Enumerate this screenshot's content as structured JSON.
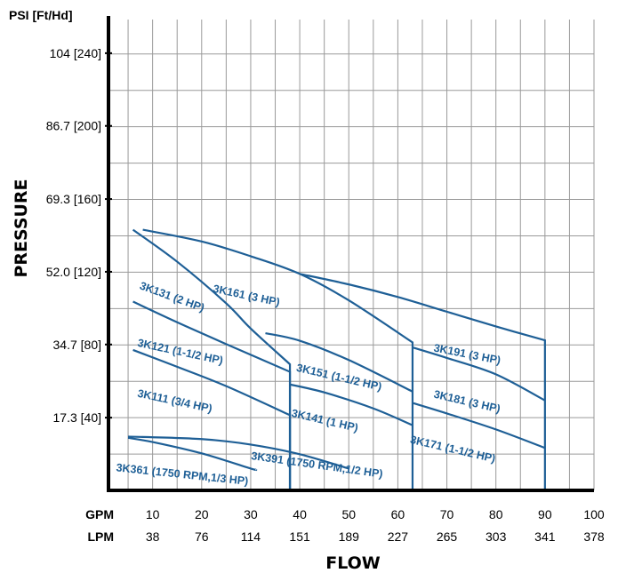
{
  "chart_data": {
    "type": "line",
    "xlabel": "FLOW",
    "ylabel": "PRESSURE",
    "y_unit_label": "PSI [Ft/Hd]",
    "x_unit_labels": [
      "GPM",
      "LPM"
    ],
    "x_ticks": [
      {
        "gpm": "10",
        "lpm": "38"
      },
      {
        "gpm": "20",
        "lpm": "76"
      },
      {
        "gpm": "30",
        "lpm": "114"
      },
      {
        "gpm": "40",
        "lpm": "151"
      },
      {
        "gpm": "50",
        "lpm": "189"
      },
      {
        "gpm": "60",
        "lpm": "227"
      },
      {
        "gpm": "70",
        "lpm": "265"
      },
      {
        "gpm": "80",
        "lpm": "303"
      },
      {
        "gpm": "90",
        "lpm": "341"
      },
      {
        "gpm": "100",
        "lpm": "378"
      }
    ],
    "y_ticks": [
      {
        "value": 17.3,
        "label": "17.3 [40]"
      },
      {
        "value": 34.7,
        "label": "34.7 [80]"
      },
      {
        "value": 52.0,
        "label": "52.0 [120]"
      },
      {
        "value": 69.3,
        "label": "69.3 [160]"
      },
      {
        "value": 86.7,
        "label": "86.7 [200]"
      },
      {
        "value": 104,
        "label": "104 [240]"
      }
    ],
    "xlim": [
      1,
      100
    ],
    "ylim": [
      0,
      112
    ],
    "grid": true,
    "series": [
      {
        "name": "3K361 (1750 RPM,1/3 HP)",
        "x": [
          5,
          10,
          20,
          30,
          31
        ],
        "y": [
          12.5,
          11.5,
          8.8,
          5.2,
          5.0
        ],
        "drop": false
      },
      {
        "name": "3K391 (1750 RPM,1/2 HP)",
        "x": [
          5,
          20,
          30,
          40,
          50
        ],
        "y": [
          12.8,
          12.2,
          10.9,
          8.6,
          5.2
        ],
        "drop": false
      },
      {
        "name": "3K111 (3/4 HP)",
        "x": [
          6,
          15,
          25,
          38
        ],
        "y": [
          33.4,
          29.4,
          24.8,
          17.9
        ],
        "drop": true
      },
      {
        "name": "3K121 (1-1/2 HP)",
        "x": [
          6,
          15,
          25,
          38
        ],
        "y": [
          44.9,
          40.0,
          34.8,
          28.2
        ],
        "drop": true
      },
      {
        "name": "3K131 (2 HP)",
        "x": [
          6,
          15,
          25,
          30,
          38
        ],
        "y": [
          62.0,
          54.4,
          44.5,
          38.5,
          30.0
        ],
        "drop": true
      },
      {
        "name": "3K141 (1 HP)",
        "x": [
          38,
          45,
          55,
          63
        ],
        "y": [
          25.2,
          23.3,
          19.5,
          15.5
        ],
        "drop": false
      },
      {
        "name": "3K151 (1-1/2 HP)",
        "x": [
          33,
          40,
          50,
          63
        ],
        "y": [
          37.4,
          35.6,
          31.0,
          23.5
        ],
        "drop": false
      },
      {
        "name": "3K161 (3 HP)",
        "x": [
          8,
          20,
          30,
          40,
          50,
          63
        ],
        "y": [
          62.0,
          59.2,
          55.7,
          51.5,
          45.2,
          35.2
        ],
        "drop": true
      },
      {
        "name": "3K171 (1-1/2 HP)",
        "x": [
          63,
          70,
          80,
          90
        ],
        "y": [
          20.8,
          18.3,
          14.5,
          10.1
        ],
        "drop": false
      },
      {
        "name": "3K181 (3 HP)",
        "x": [
          63,
          70,
          80,
          90
        ],
        "y": [
          34.0,
          31.5,
          27.6,
          21.4
        ],
        "drop": false
      },
      {
        "name": "3K191 (3 HP)",
        "x": [
          40,
          50,
          60,
          70,
          80,
          90
        ],
        "y": [
          51.5,
          49.0,
          46.0,
          42.5,
          39.0,
          35.7
        ],
        "drop": true
      }
    ]
  }
}
